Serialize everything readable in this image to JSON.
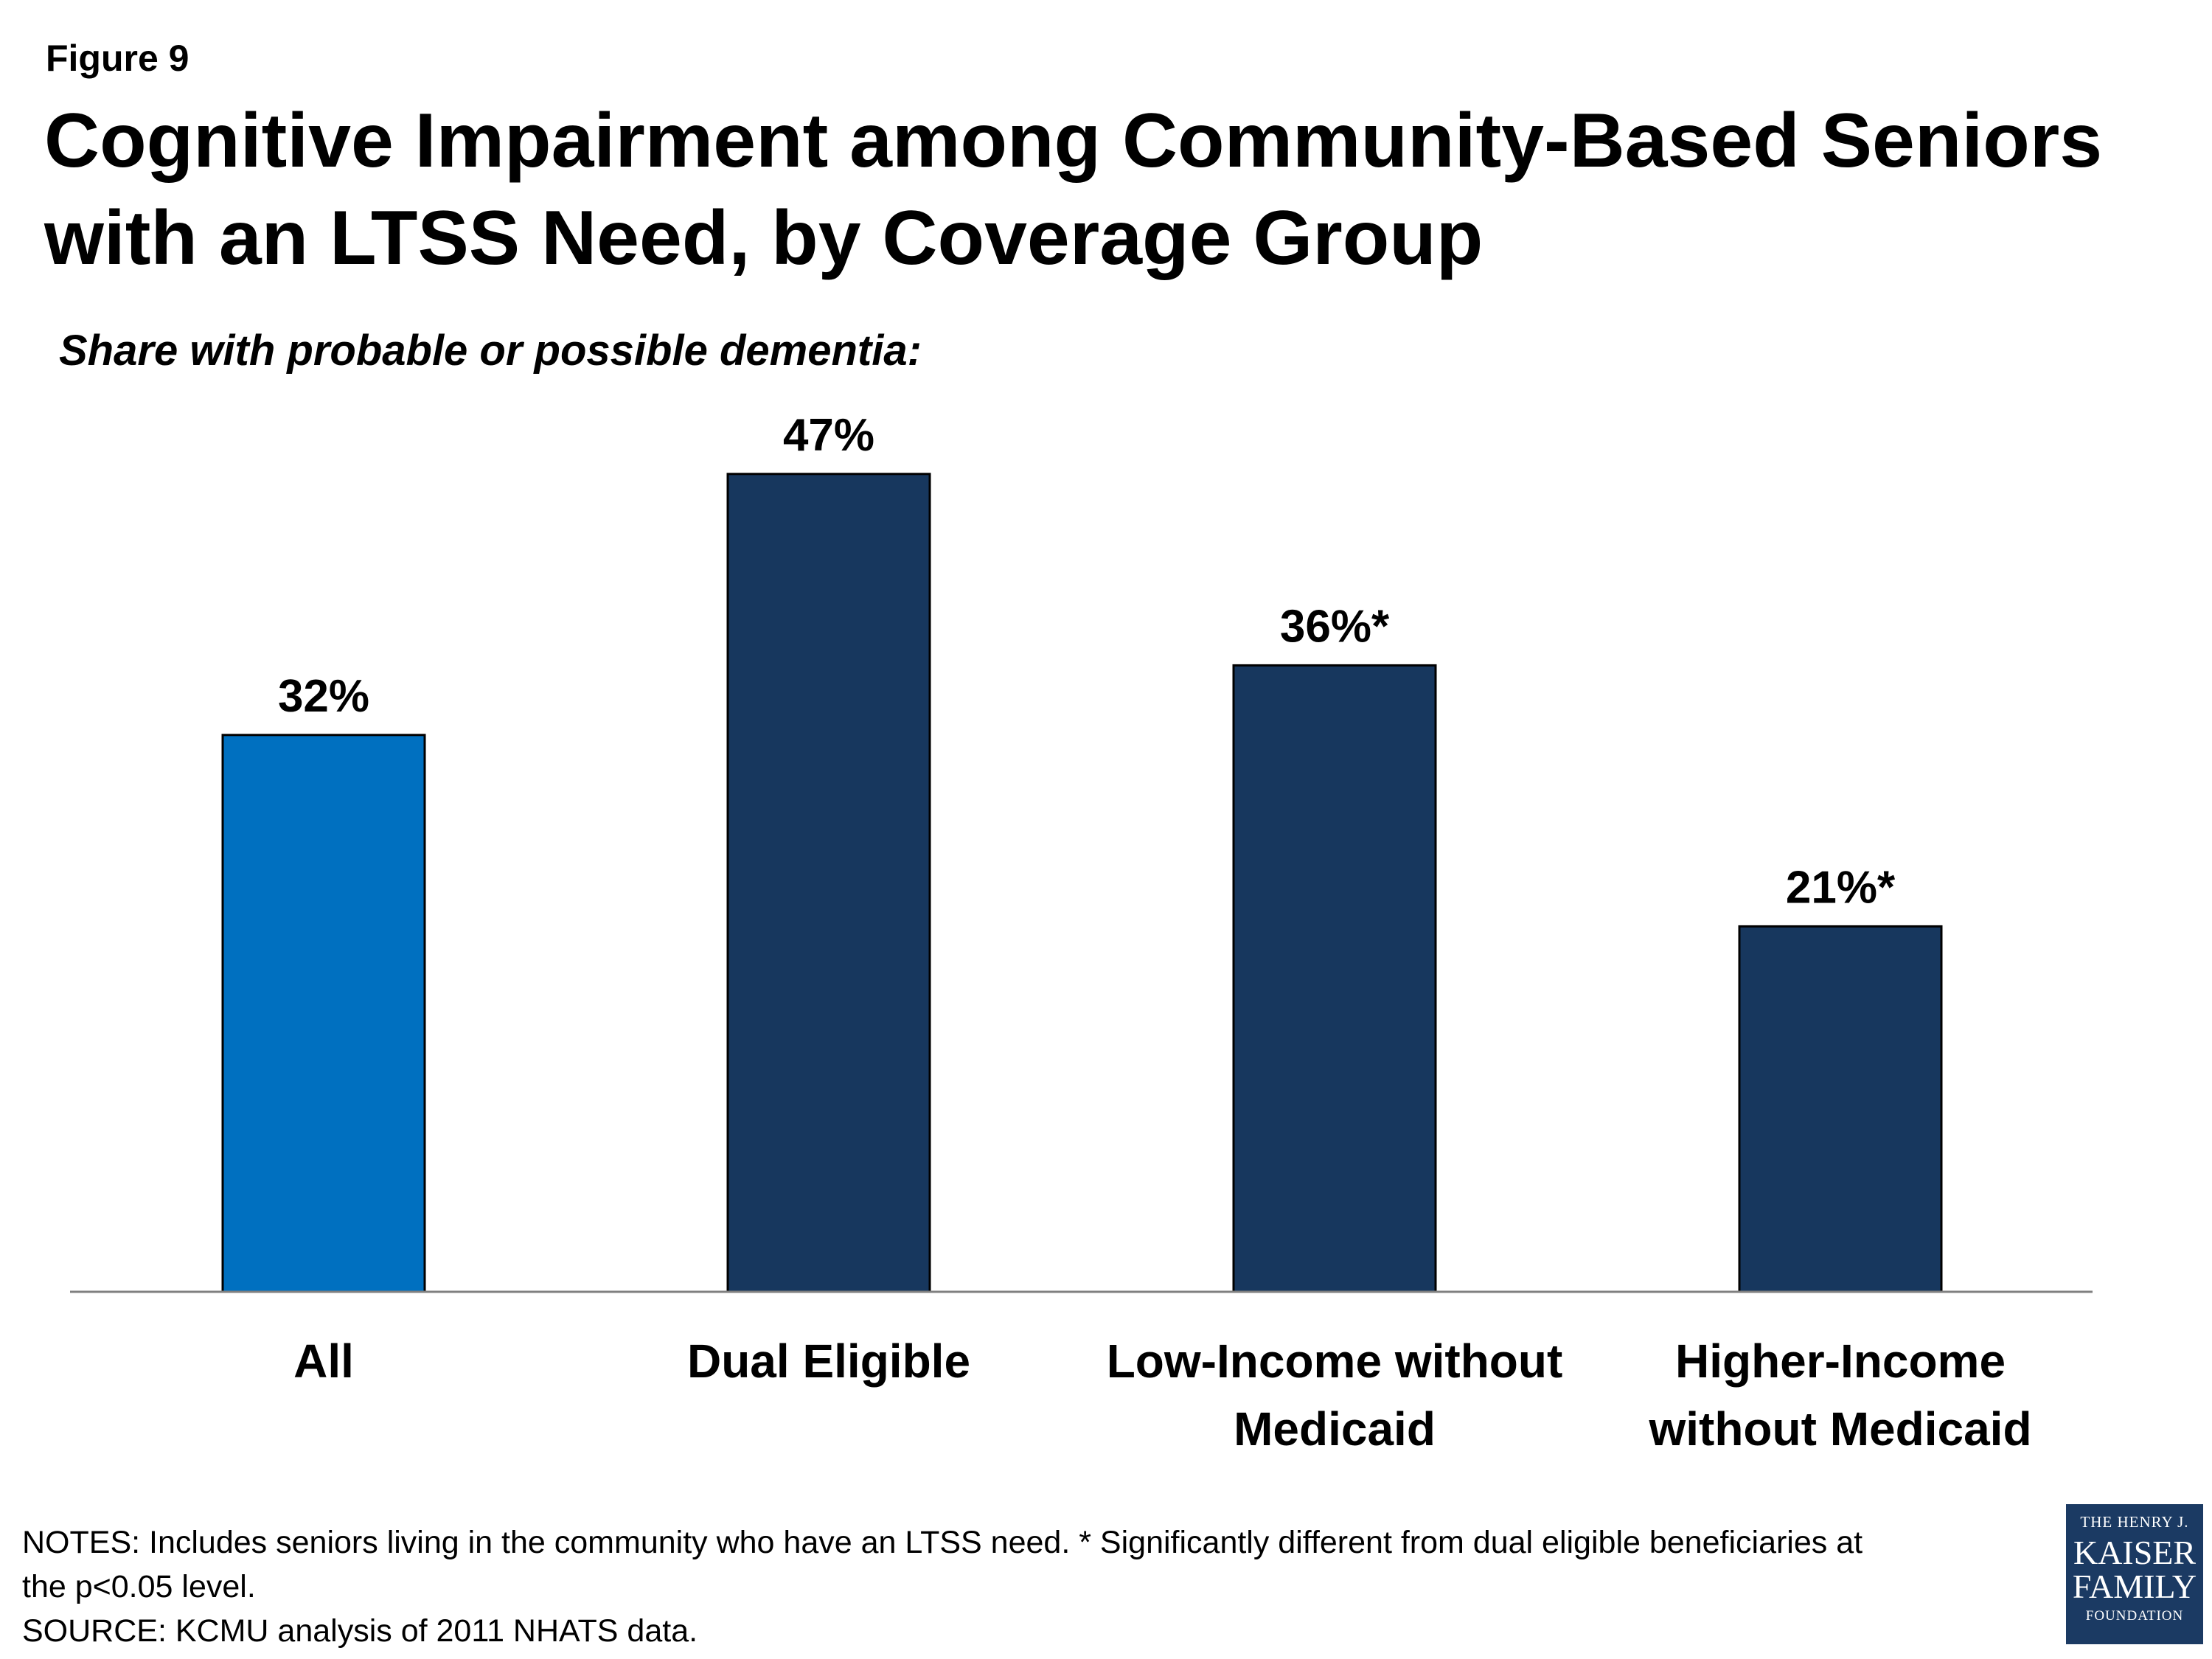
{
  "figure_label": "Figure 9",
  "title_lines": [
    "Cognitive Impairment among Community-Based Seniors",
    "with an LTSS Need, by Coverage Group"
  ],
  "subtitle": "Share with probable or possible dementia:",
  "notes": {
    "line1": "NOTES: Includes seniors living in the community who have an LTSS need. * Significantly different from dual eligible beneficiaries at",
    "line2": "the p<0.05 level.",
    "source": "SOURCE: KCMU analysis of 2011 NHATS data."
  },
  "logo": {
    "line1": "THE HENRY J.",
    "line2": "KAISER",
    "line3": "FAMILY",
    "line4": "FOUNDATION"
  },
  "colors": {
    "highlight_bar": "#0070c0",
    "bar": "#17375e",
    "axis": "#808080",
    "logo_bg": "#1b3a63"
  },
  "chart_data": {
    "type": "bar",
    "title": "Cognitive Impairment among Community-Based Seniors with an LTSS Need, by Coverage Group",
    "subtitle": "Share with probable or possible dementia:",
    "xlabel": "",
    "ylabel": "",
    "ylim": [
      0,
      50
    ],
    "grid": false,
    "categories": [
      [
        "All"
      ],
      [
        "Dual Eligible"
      ],
      [
        "Low-Income without",
        "Medicaid"
      ],
      [
        "Higher-Income",
        "without Medicaid"
      ]
    ],
    "values": [
      32,
      47,
      36,
      21
    ],
    "data_labels": [
      "32%",
      "47%",
      "36%*",
      "21%*"
    ],
    "highlight_index": 0
  }
}
